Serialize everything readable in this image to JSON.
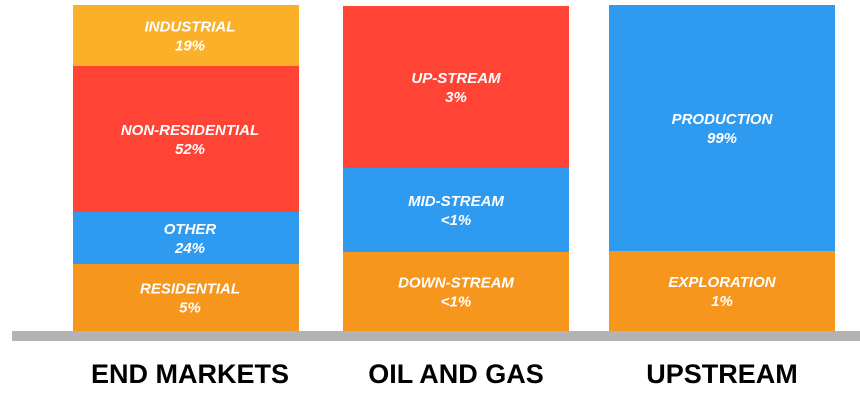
{
  "chart_data": {
    "type": "bar",
    "stacked": true,
    "categories": [
      "END MARKETS",
      "OIL AND GAS",
      "UPSTREAM"
    ],
    "stacks": [
      {
        "category": "END MARKETS",
        "segments": [
          {
            "name": "RESIDENTIAL",
            "label": "5%",
            "color": "#f7961d"
          },
          {
            "name": "OTHER",
            "label": "24%",
            "color": "#2e9af0"
          },
          {
            "name": "NON-RESIDENTIAL",
            "label": "52%",
            "color": "#ff4436"
          },
          {
            "name": "INDUSTRIAL",
            "label": "19%",
            "color": "#fbb02a"
          }
        ]
      },
      {
        "category": "OIL AND GAS",
        "segments": [
          {
            "name": "DOWN-STREAM",
            "label": "<1%",
            "color": "#f7961d"
          },
          {
            "name": "MID-STREAM",
            "label": "<1%",
            "color": "#2e9af0"
          },
          {
            "name": "UP-STREAM",
            "label": "3%",
            "color": "#ff4436"
          }
        ]
      },
      {
        "category": "UPSTREAM",
        "segments": [
          {
            "name": "EXPLORATION",
            "label": "1%",
            "color": "#f7961d"
          },
          {
            "name": "PRODUCTION",
            "label": "99%",
            "color": "#2e9af0"
          }
        ]
      }
    ],
    "baseline_color": "#b3b3b3"
  }
}
